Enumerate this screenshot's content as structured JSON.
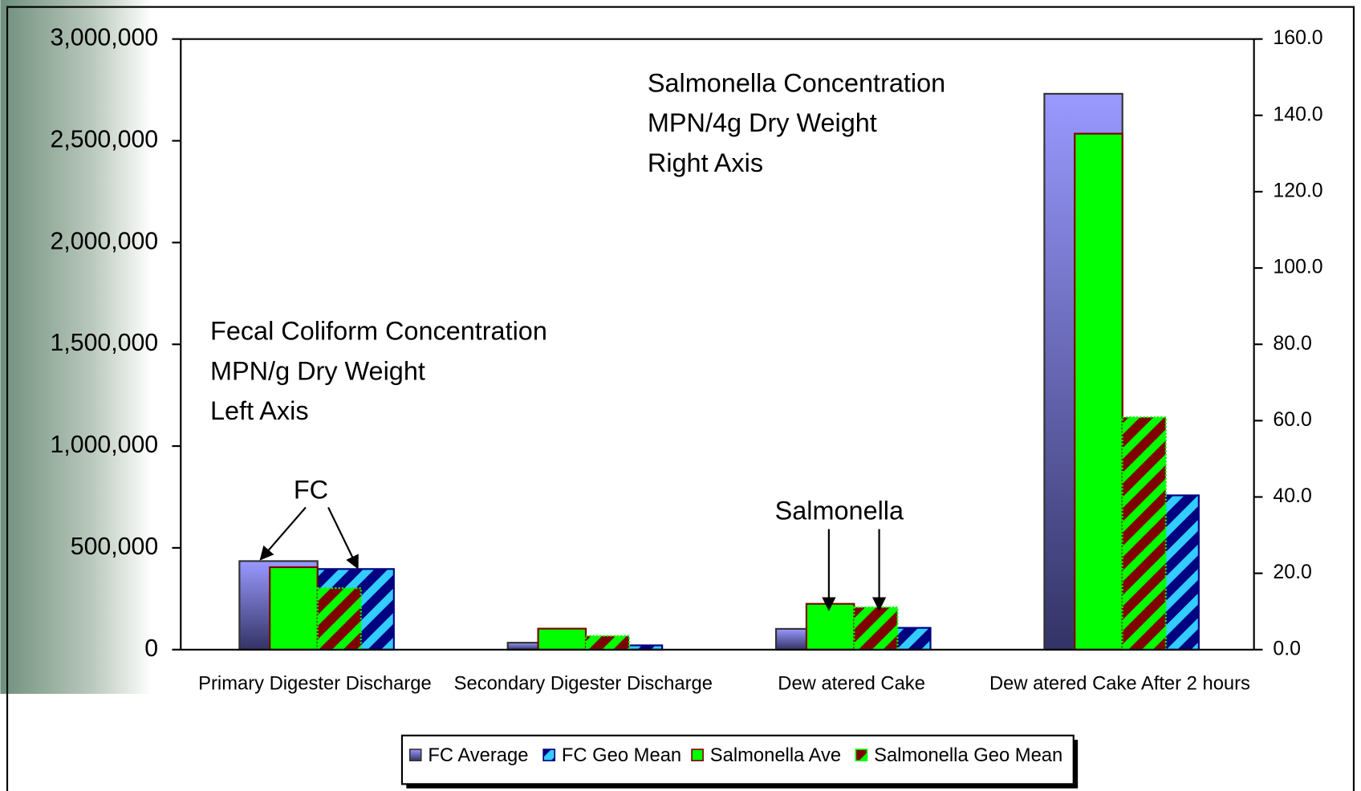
{
  "chart_data": {
    "type": "bar",
    "categories": [
      "Primary Digester Discharge",
      "Secondary Digester Discharge",
      "Dew atered Cake",
      "Dew atered Cake After 2 hours"
    ],
    "series": [
      {
        "name": "FC Average",
        "color": "#9999ff",
        "color2": "#333366",
        "values": [
          435000,
          34000,
          102000,
          2731000
        ]
      },
      {
        "name": "FC Geo Mean",
        "color": "#000080",
        "color2": "#33ccff",
        "values": [
          396000,
          21000,
          107000,
          758000
        ]
      },
      {
        "name": "Salmonella Ave",
        "color": "#00ff00",
        "color2": "#800000",
        "values": [
          21.6,
          5.5,
          12.0,
          135.2
        ],
        "axis": "y2"
      },
      {
        "name": "Salmonella Geo Mean",
        "color": "#800000",
        "color2": "#00ff00",
        "values": [
          16.1,
          3.6,
          11.1,
          60.9
        ],
        "axis": "y2"
      }
    ],
    "ylim": [
      0,
      3000000
    ],
    "yticks": [
      0,
      {
        "value": 500000,
        "label": "500,000"
      },
      {
        "value": 1000000,
        "label": "1,000,000"
      },
      {
        "value": 1500000,
        "label": "1,500,000"
      },
      {
        "value": 2000000,
        "label": "2,000,000"
      },
      {
        "value": 2500000,
        "label": "2,500,000"
      },
      {
        "value": 3000000,
        "label": "3,000,000"
      }
    ],
    "y2lim": [
      0,
      160
    ],
    "y2ticks": [
      {
        "value": 0,
        "label": "0.0"
      },
      {
        "value": 20,
        "label": "20.0"
      },
      {
        "value": 40,
        "label": "40.0"
      },
      {
        "value": 60,
        "label": "60.0"
      },
      {
        "value": 80,
        "label": "80.0"
      },
      {
        "value": 100,
        "label": "100.0"
      },
      {
        "value": 120,
        "label": "120.0"
      },
      {
        "value": 140,
        "label": "140.0"
      },
      {
        "value": 160,
        "label": "160.0"
      }
    ],
    "annotations": [
      "Salmonella Concentration",
      "MPN/4g Dry Weight",
      "Right Axis",
      "Fecal Coliform Concentration",
      "MPN/g Dry Weight",
      "Left Axis",
      "FC",
      "Salmonella"
    ],
    "legend": "bottom"
  }
}
